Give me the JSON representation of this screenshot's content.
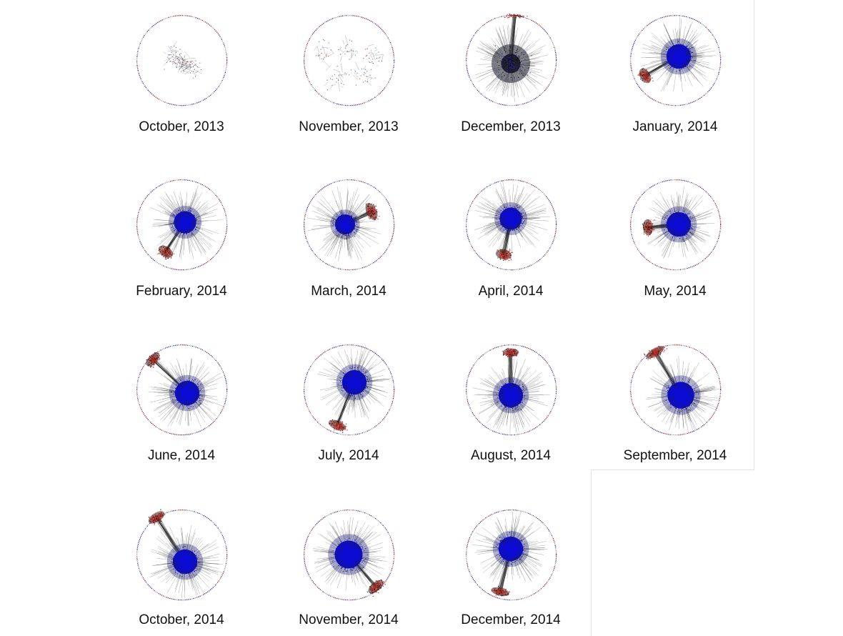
{
  "colors": {
    "background": "#ffffff",
    "core": "#0a0ad2",
    "core_edges": "#1a1a7a",
    "side_cluster": "#c0281e",
    "edges": "#222222",
    "ring_blue": "#2a2ab0",
    "ring_red": "#b42020"
  },
  "panels": [
    {
      "label": "October, 2013",
      "structure": "sparse"
    },
    {
      "label": "November, 2013",
      "structure": "sparse"
    },
    {
      "label": "December, 2013",
      "structure": "dense-dark-core"
    },
    {
      "label": "January, 2014",
      "structure": "core-with-red-cluster"
    },
    {
      "label": "February, 2014",
      "structure": "core-with-red-cluster"
    },
    {
      "label": "March, 2014",
      "structure": "core-with-red-cluster"
    },
    {
      "label": "April, 2014",
      "structure": "core-with-red-cluster"
    },
    {
      "label": "May, 2014",
      "structure": "core-with-red-cluster"
    },
    {
      "label": "June, 2014",
      "structure": "core-with-red-cluster"
    },
    {
      "label": "July, 2014",
      "structure": "core-with-red-cluster"
    },
    {
      "label": "August, 2014",
      "structure": "core-with-red-cluster"
    },
    {
      "label": "September, 2014",
      "structure": "core-with-red-cluster"
    },
    {
      "label": "October, 2014",
      "structure": "core-with-red-cluster"
    },
    {
      "label": "November, 2014",
      "structure": "core-with-red-cluster"
    },
    {
      "label": "December, 2014",
      "structure": "core-with-red-cluster"
    }
  ]
}
